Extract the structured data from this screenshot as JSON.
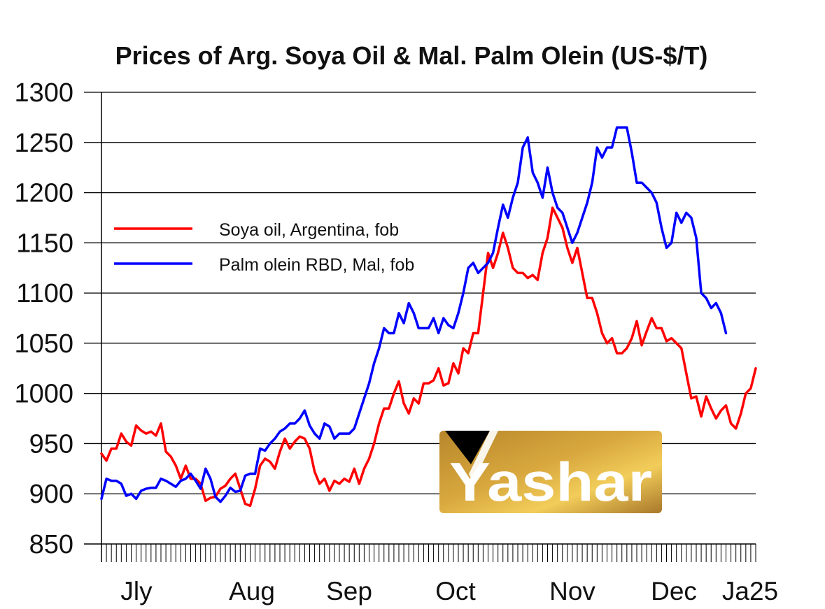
{
  "chart_data": {
    "type": "line",
    "title": "Prices of Arg. Soya Oil & Mal. Palm Olein (US-$/T)",
    "xlabel": "",
    "ylabel": "",
    "ylim": [
      850,
      1300
    ],
    "yticks": [
      "1300",
      "1250",
      "1200",
      "1150",
      "1100",
      "1050",
      "1000",
      "950",
      "900",
      "850"
    ],
    "month_labels": [
      "Jly",
      "Aug",
      "Sep",
      "Oct",
      "Nov",
      "Dec",
      "Ja25"
    ],
    "grid": true,
    "legend_position": "upper-left",
    "series": [
      {
        "name": "Soya oil, Argentina, fob",
        "color": "#ff0000",
        "values": [
          940,
          933,
          945,
          945,
          960,
          952,
          948,
          968,
          963,
          960,
          962,
          958,
          970,
          942,
          937,
          928,
          915,
          928,
          915,
          915,
          910,
          893,
          896,
          897,
          905,
          908,
          915,
          920,
          905,
          890,
          888,
          905,
          928,
          935,
          932,
          925,
          942,
          955,
          945,
          952,
          957,
          955,
          945,
          922,
          910,
          915,
          903,
          913,
          910,
          915,
          912,
          925,
          910,
          925,
          935,
          950,
          970,
          985,
          985,
          1000,
          1012,
          990,
          980,
          995,
          990,
          1010,
          1010,
          1013,
          1025,
          1008,
          1010,
          1030,
          1020,
          1045,
          1040,
          1060,
          1060,
          1100,
          1140,
          1125,
          1140,
          1160,
          1145,
          1125,
          1120,
          1120,
          1115,
          1118,
          1113,
          1140,
          1155,
          1185,
          1175,
          1165,
          1145,
          1130,
          1145,
          1120,
          1095,
          1095,
          1080,
          1060,
          1050,
          1055,
          1040,
          1040,
          1045,
          1055,
          1072,
          1048,
          1062,
          1075,
          1065,
          1065,
          1052,
          1055,
          1050,
          1045,
          1020,
          995,
          997,
          977,
          997,
          985,
          975,
          983,
          988,
          970,
          965,
          980,
          1000,
          1005,
          1025
        ]
      },
      {
        "name": "Palm olein RBD, Mal, fob",
        "color": "#0000ff",
        "values": [
          895,
          915,
          913,
          913,
          910,
          898,
          900,
          895,
          903,
          905,
          906,
          906,
          915,
          913,
          910,
          907,
          913,
          915,
          920,
          913,
          905,
          925,
          915,
          897,
          892,
          898,
          906,
          902,
          903,
          918,
          920,
          920,
          945,
          943,
          950,
          955,
          962,
          965,
          970,
          970,
          975,
          983,
          968,
          960,
          955,
          970,
          967,
          955,
          960,
          960,
          960,
          965,
          980,
          995,
          1010,
          1030,
          1045,
          1065,
          1060,
          1060,
          1080,
          1070,
          1090,
          1080,
          1065,
          1065,
          1065,
          1075,
          1060,
          1075,
          1068,
          1065,
          1080,
          1100,
          1125,
          1130,
          1120,
          1125,
          1130,
          1140,
          1165,
          1188,
          1175,
          1195,
          1210,
          1245,
          1255,
          1220,
          1210,
          1195,
          1225,
          1200,
          1185,
          1180,
          1165,
          1150,
          1160,
          1175,
          1190,
          1210,
          1245,
          1235,
          1245,
          1245,
          1265,
          1265,
          1265,
          1240,
          1210,
          1210,
          1205,
          1200,
          1190,
          1165,
          1145,
          1150,
          1180,
          1170,
          1180,
          1175,
          1155,
          1100,
          1095,
          1085,
          1090,
          1080,
          1060
        ]
      }
    ]
  },
  "logo": {
    "text": "Yashar"
  }
}
